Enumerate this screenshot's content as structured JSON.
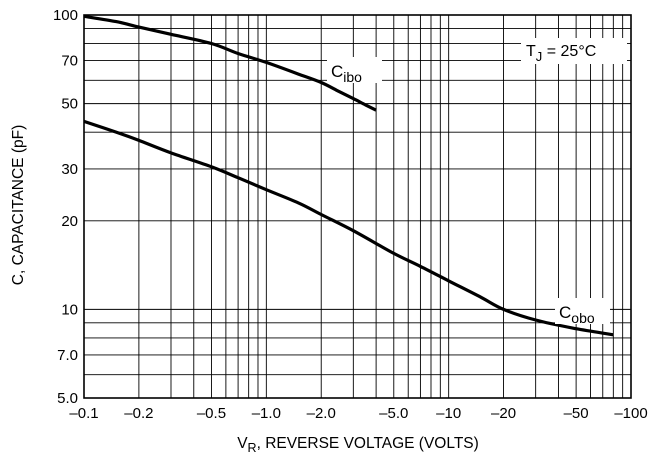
{
  "chart_data": {
    "type": "line",
    "xlabel": "V",
    "xlabel_subscript": "R",
    "xlabel_rest": ", REVERSE VOLTAGE (VOLTS)",
    "ylabel": "C, CAPACITANCE (pF)",
    "x_scale": "log",
    "y_scale": "log",
    "xlim": [
      0.1,
      100
    ],
    "ylim": [
      5.0,
      100
    ],
    "x_ticks": [
      {
        "value": 0.1,
        "label": "–0.1"
      },
      {
        "value": 0.2,
        "label": "–0.2"
      },
      {
        "value": 0.5,
        "label": "–0.5"
      },
      {
        "value": 1.0,
        "label": "–1.0"
      },
      {
        "value": 2.0,
        "label": "–2.0"
      },
      {
        "value": 5.0,
        "label": "–5.0"
      },
      {
        "value": 10,
        "label": "–10"
      },
      {
        "value": 20,
        "label": "–20"
      },
      {
        "value": 50,
        "label": "–50"
      },
      {
        "value": 100,
        "label": "–100"
      }
    ],
    "y_ticks": [
      {
        "value": 5.0,
        "label": "5.0"
      },
      {
        "value": 7.0,
        "label": "7.0"
      },
      {
        "value": 10,
        "label": "10"
      },
      {
        "value": 20,
        "label": "20"
      },
      {
        "value": 30,
        "label": "30"
      },
      {
        "value": 50,
        "label": "50"
      },
      {
        "value": 70,
        "label": "70"
      },
      {
        "value": 100,
        "label": "100"
      }
    ],
    "x_grid": [
      0.1,
      0.2,
      0.3,
      0.4,
      0.5,
      0.6,
      0.7,
      0.8,
      0.9,
      1,
      2,
      3,
      4,
      5,
      6,
      7,
      8,
      9,
      10,
      20,
      30,
      40,
      50,
      60,
      70,
      80,
      90,
      100
    ],
    "y_grid": [
      5,
      6,
      7,
      8,
      9,
      10,
      20,
      30,
      40,
      50,
      60,
      70,
      80,
      90,
      100
    ],
    "grid": true,
    "annotation": {
      "main": "T",
      "sub": "J",
      "rest": " = 25°C"
    },
    "series": [
      {
        "label_main": "C",
        "label_sub": "ibo",
        "points": [
          [
            0.1,
            99
          ],
          [
            0.15,
            95
          ],
          [
            0.2,
            91
          ],
          [
            0.3,
            86
          ],
          [
            0.5,
            80
          ],
          [
            0.7,
            74
          ],
          [
            1.0,
            69
          ],
          [
            1.5,
            63
          ],
          [
            2.0,
            59
          ],
          [
            2.5,
            55
          ],
          [
            3.0,
            52
          ],
          [
            3.5,
            49.5
          ],
          [
            4.0,
            47.5
          ]
        ]
      },
      {
        "label_main": "C",
        "label_sub": "obo",
        "points": [
          [
            0.1,
            43.5
          ],
          [
            0.15,
            40
          ],
          [
            0.2,
            37.5
          ],
          [
            0.3,
            34
          ],
          [
            0.5,
            30.5
          ],
          [
            0.7,
            28
          ],
          [
            1.0,
            25.5
          ],
          [
            1.5,
            23
          ],
          [
            2.0,
            21
          ],
          [
            3.0,
            18.5
          ],
          [
            5.0,
            15.5
          ],
          [
            7.0,
            14
          ],
          [
            10,
            12.5
          ],
          [
            15,
            11
          ],
          [
            20,
            10
          ],
          [
            30,
            9.2
          ],
          [
            50,
            8.6
          ],
          [
            80,
            8.2
          ]
        ]
      }
    ]
  }
}
